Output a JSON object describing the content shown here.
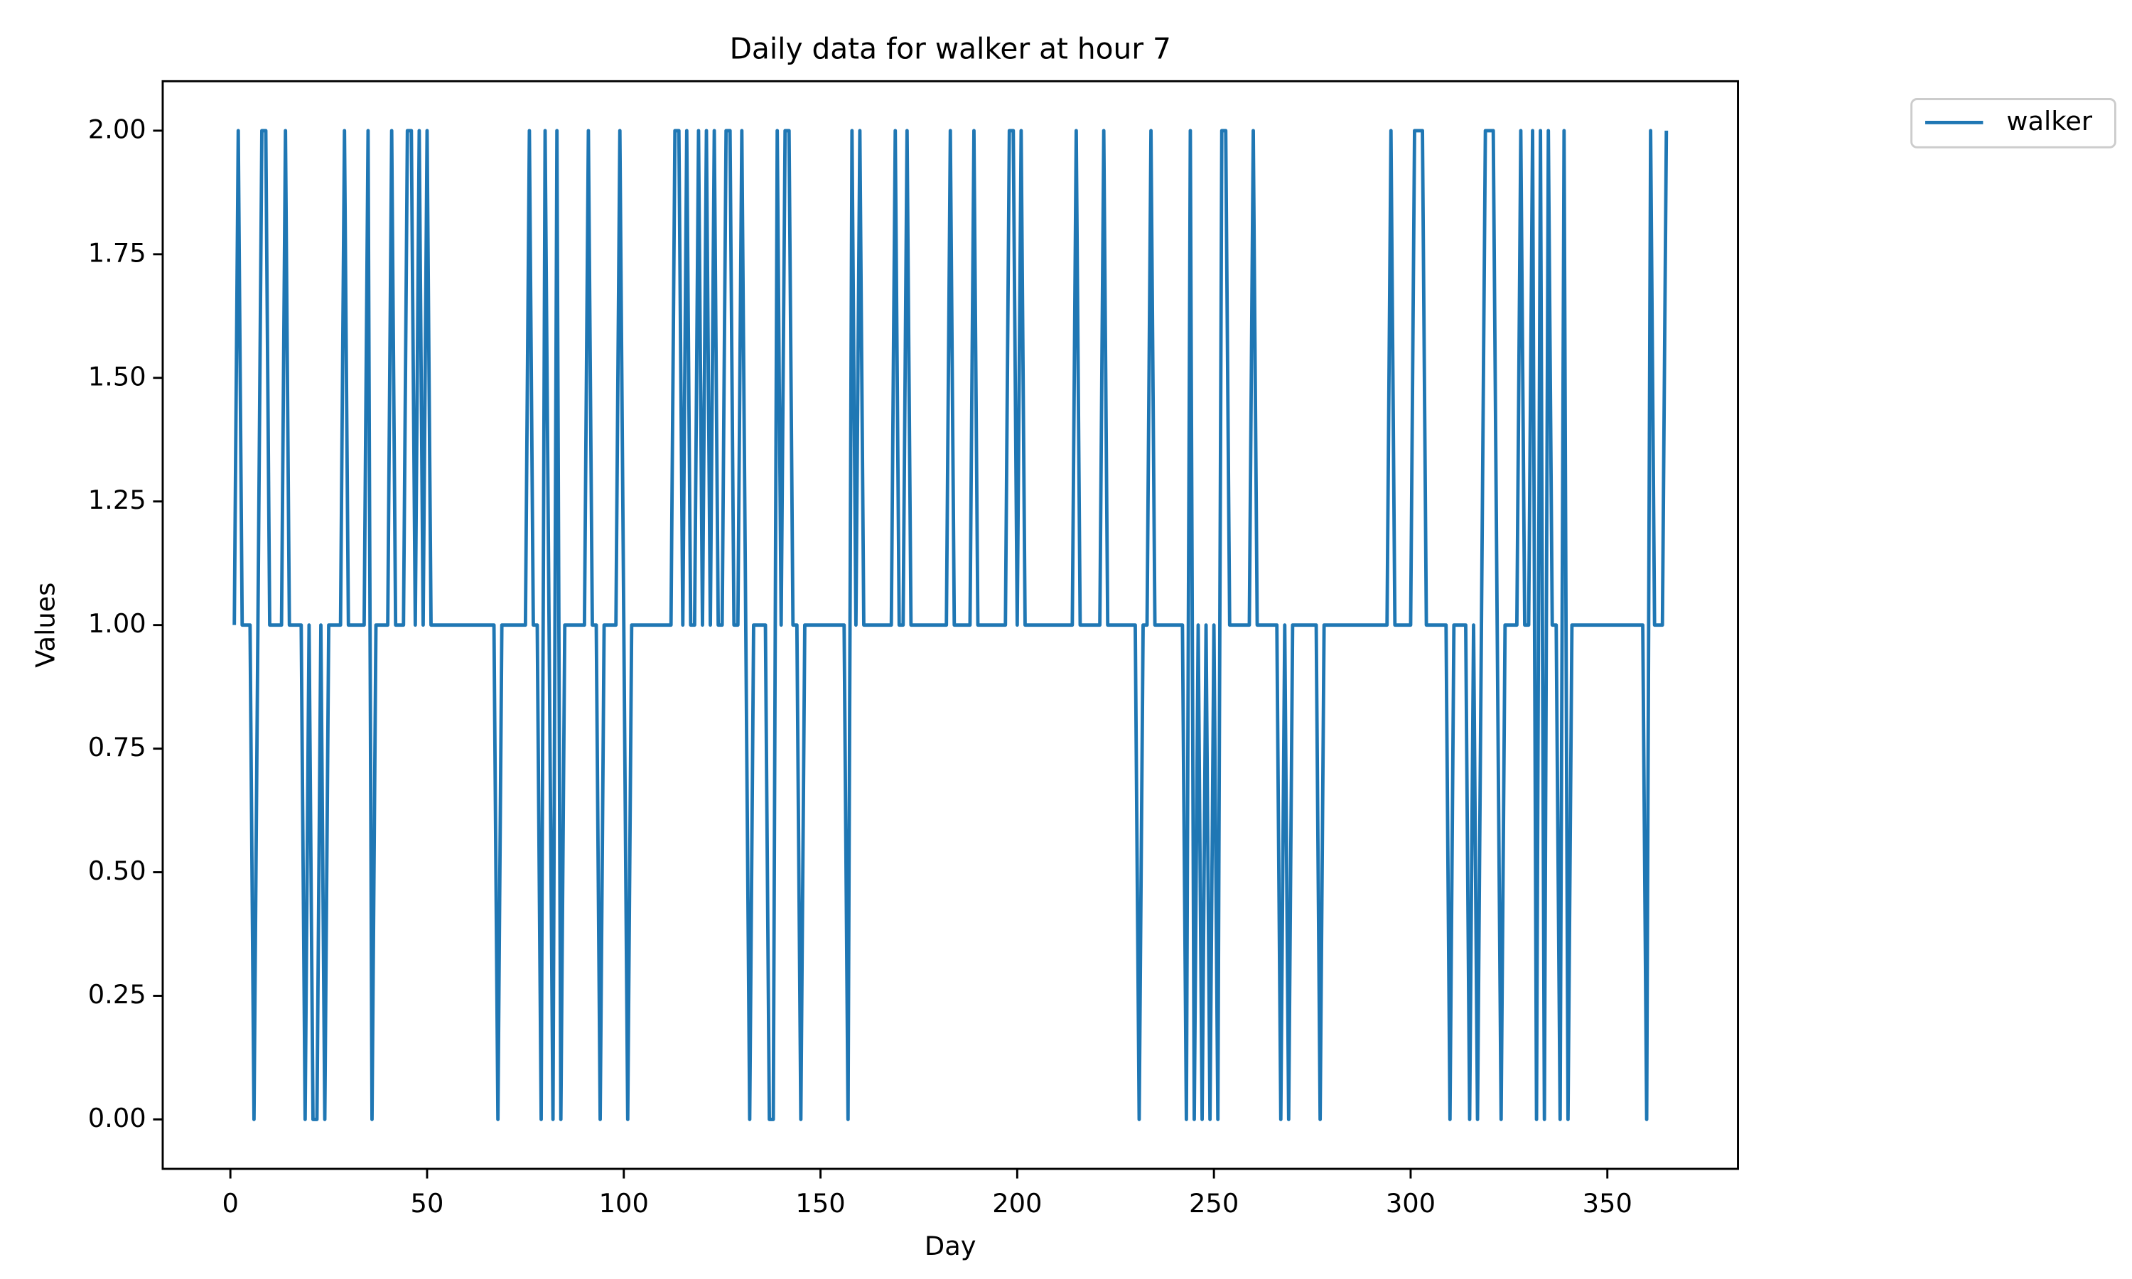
{
  "chart_data": {
    "type": "line",
    "title": "Daily data for walker at hour 7",
    "x_label": "Day",
    "y_label": "Values",
    "x": [
      1,
      2,
      3,
      4,
      5,
      6,
      7,
      8,
      9,
      10,
      11,
      12,
      13,
      14,
      15,
      16,
      17,
      18,
      19,
      20,
      21,
      22,
      23,
      24,
      25,
      26,
      27,
      28,
      29,
      30,
      31,
      32,
      33,
      34,
      35,
      36,
      37,
      38,
      39,
      40,
      41,
      42,
      43,
      44,
      45,
      46,
      47,
      48,
      49,
      50,
      51,
      52,
      53,
      54,
      55,
      56,
      57,
      58,
      59,
      60,
      61,
      62,
      63,
      64,
      65,
      66,
      67,
      68,
      69,
      70,
      71,
      72,
      73,
      74,
      75,
      76,
      77,
      78,
      79,
      80,
      81,
      82,
      83,
      84,
      85,
      86,
      87,
      88,
      89,
      90,
      91,
      92,
      93,
      94,
      95,
      96,
      97,
      98,
      99,
      100,
      101,
      102,
      103,
      104,
      105,
      106,
      107,
      108,
      109,
      110,
      111,
      112,
      113,
      114,
      115,
      116,
      117,
      118,
      119,
      120,
      121,
      122,
      123,
      124,
      125,
      126,
      127,
      128,
      129,
      130,
      131,
      132,
      133,
      134,
      135,
      136,
      137,
      138,
      139,
      140,
      141,
      142,
      143,
      144,
      145,
      146,
      147,
      148,
      149,
      150,
      151,
      152,
      153,
      154,
      155,
      156,
      157,
      158,
      159,
      160,
      161,
      162,
      163,
      164,
      165,
      166,
      167,
      168,
      169,
      170,
      171,
      172,
      173,
      174,
      175,
      176,
      177,
      178,
      179,
      180,
      181,
      182,
      183,
      184,
      185,
      186,
      187,
      188,
      189,
      190,
      191,
      192,
      193,
      194,
      195,
      196,
      197,
      198,
      199,
      200,
      201,
      202,
      203,
      204,
      205,
      206,
      207,
      208,
      209,
      210,
      211,
      212,
      213,
      214,
      215,
      216,
      217,
      218,
      219,
      220,
      221,
      222,
      223,
      224,
      225,
      226,
      227,
      228,
      229,
      230,
      231,
      232,
      233,
      234,
      235,
      236,
      237,
      238,
      239,
      240,
      241,
      242,
      243,
      244,
      245,
      246,
      247,
      248,
      249,
      250,
      251,
      252,
      253,
      254,
      255,
      256,
      257,
      258,
      259,
      260,
      261,
      262,
      263,
      264,
      265,
      266,
      267,
      268,
      269,
      270,
      271,
      272,
      273,
      274,
      275,
      276,
      277,
      278,
      279,
      280,
      281,
      282,
      283,
      284,
      285,
      286,
      287,
      288,
      289,
      290,
      291,
      292,
      293,
      294,
      295,
      296,
      297,
      298,
      299,
      300,
      301,
      302,
      303,
      304,
      305,
      306,
      307,
      308,
      309,
      310,
      311,
      312,
      313,
      314,
      315,
      316,
      317,
      318,
      319,
      320,
      321,
      322,
      323,
      324,
      325,
      326,
      327,
      328,
      329,
      330,
      331,
      332,
      333,
      334,
      335,
      336,
      337,
      338,
      339,
      340,
      341,
      342,
      343,
      344,
      345,
      346,
      347,
      348,
      349,
      350,
      351,
      352,
      353,
      354,
      355,
      356,
      357,
      358,
      359,
      360,
      361,
      362,
      363,
      364,
      365
    ],
    "series": [
      {
        "name": "walker",
        "color": "#1f77b4",
        "values": [
          1,
          2,
          1,
          1,
          1,
          0,
          1,
          2,
          2,
          1,
          1,
          1,
          1,
          2,
          1,
          1,
          1,
          1,
          0,
          1,
          0,
          0,
          1,
          0,
          1,
          1,
          1,
          1,
          2,
          1,
          1,
          1,
          1,
          1,
          2,
          0,
          1,
          1,
          1,
          1,
          2,
          1,
          1,
          1,
          2,
          2,
          1,
          2,
          1,
          2,
          1,
          1,
          1,
          1,
          1,
          1,
          1,
          1,
          1,
          1,
          1,
          1,
          1,
          1,
          1,
          1,
          1,
          0,
          1,
          1,
          1,
          1,
          1,
          1,
          1,
          2,
          1,
          1,
          0,
          2,
          1,
          0,
          2,
          0,
          1,
          1,
          1,
          1,
          1,
          1,
          2,
          1,
          1,
          0,
          1,
          1,
          1,
          1,
          2,
          1,
          0,
          1,
          1,
          1,
          1,
          1,
          1,
          1,
          1,
          1,
          1,
          1,
          2,
          2,
          1,
          2,
          1,
          1,
          2,
          1,
          2,
          1,
          2,
          1,
          1,
          2,
          2,
          1,
          1,
          2,
          1,
          0,
          1,
          1,
          1,
          1,
          0,
          0,
          2,
          1,
          2,
          2,
          1,
          1,
          0,
          1,
          1,
          1,
          1,
          1,
          1,
          1,
          1,
          1,
          1,
          1,
          0,
          2,
          1,
          2,
          1,
          1,
          1,
          1,
          1,
          1,
          1,
          1,
          2,
          1,
          1,
          2,
          1,
          1,
          1,
          1,
          1,
          1,
          1,
          1,
          1,
          1,
          2,
          1,
          1,
          1,
          1,
          1,
          2,
          1,
          1,
          1,
          1,
          1,
          1,
          1,
          1,
          2,
          2,
          1,
          2,
          1,
          1,
          1,
          1,
          1,
          1,
          1,
          1,
          1,
          1,
          1,
          1,
          1,
          2,
          1,
          1,
          1,
          1,
          1,
          1,
          2,
          1,
          1,
          1,
          1,
          1,
          1,
          1,
          1,
          0,
          1,
          1,
          2,
          1,
          1,
          1,
          1,
          1,
          1,
          1,
          1,
          0,
          2,
          0,
          1,
          0,
          1,
          0,
          1,
          0,
          2,
          2,
          1,
          1,
          1,
          1,
          1,
          1,
          2,
          1,
          1,
          1,
          1,
          1,
          1,
          0,
          1,
          0,
          1,
          1,
          1,
          1,
          1,
          1,
          1,
          0,
          1,
          1,
          1,
          1,
          1,
          1,
          1,
          1,
          1,
          1,
          1,
          1,
          1,
          1,
          1,
          1,
          1,
          2,
          1,
          1,
          1,
          1,
          1,
          2,
          2,
          2,
          1,
          1,
          1,
          1,
          1,
          1,
          0,
          1,
          1,
          1,
          1,
          0,
          1,
          0,
          1,
          2,
          2,
          2,
          1,
          0,
          1,
          1,
          1,
          1,
          2,
          1,
          1,
          2,
          0,
          2,
          0,
          2,
          1,
          1,
          0,
          2,
          0,
          1,
          1,
          1,
          1,
          1,
          1,
          1,
          1,
          1,
          1,
          1,
          1,
          1,
          1,
          1,
          1,
          1,
          1,
          1,
          0,
          2,
          1,
          1,
          1,
          2
        ]
      }
    ],
    "xlim": [
      -17.2,
      383.2
    ],
    "xticks": [
      0,
      50,
      100,
      150,
      200,
      250,
      300,
      350
    ],
    "ylim": [
      -0.1,
      2.1
    ],
    "yticks": [
      {
        "value": 0,
        "label": "0.00"
      },
      {
        "value": 0.25,
        "label": "0.25"
      },
      {
        "value": 0.5,
        "label": "0.50"
      },
      {
        "value": 0.75,
        "label": "0.75"
      },
      {
        "value": 1,
        "label": "1.00"
      },
      {
        "value": 1.25,
        "label": "1.25"
      },
      {
        "value": 1.5,
        "label": "1.50"
      },
      {
        "value": 1.75,
        "label": "1.75"
      },
      {
        "value": 2,
        "label": "2.00"
      }
    ],
    "legend": "outside-upper-right"
  }
}
